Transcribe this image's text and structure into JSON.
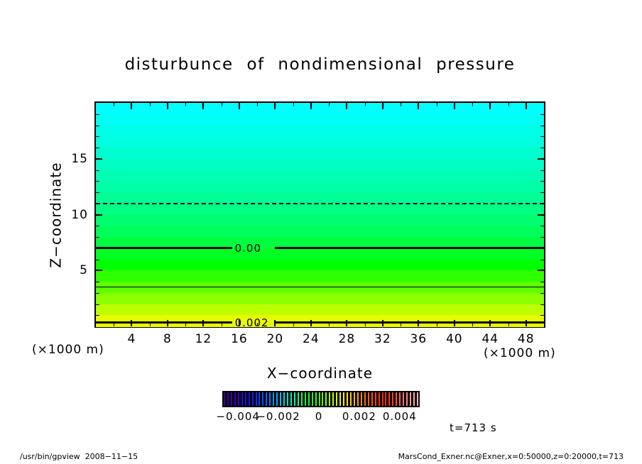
{
  "chart_data": {
    "type": "heatmap",
    "title": "disturbunce of nondimensional pressure",
    "annotation": "t=713 s",
    "x_axis": {
      "title": "X−coordinate",
      "unit_label": "(×1000 m)",
      "range": [
        0,
        50
      ],
      "tick_values": [
        4,
        8,
        12,
        16,
        20,
        24,
        28,
        32,
        36,
        40,
        44,
        48
      ],
      "tick_labels": [
        "4",
        "8",
        "12",
        "16",
        "20",
        "24",
        "28",
        "32",
        "36",
        "40",
        "44",
        "48"
      ],
      "minor_step": 2
    },
    "y_axis": {
      "title": "Z−coordinate",
      "unit_label": "(×1000 m)",
      "range": [
        0,
        20
      ],
      "tick_values": [
        5,
        10,
        15
      ],
      "tick_labels": [
        "5",
        "10",
        "15"
      ],
      "minor_step": 1
    },
    "field_description": "horizontally uniform pressure disturbance, negative (cyan) aloft decreasing to positive (yellow) near surface",
    "gradient_bands_top_to_bottom": [
      "#00FFFF",
      "#00FFF5",
      "#00FFEA",
      "#00FFDE",
      "#00FFD0",
      "#00FFC2",
      "#00FFB4",
      "#00FFA6",
      "#00FF96",
      "#00FF84",
      "#00FF70",
      "#00FF5A",
      "#00FF40",
      "#00FF22",
      "#00FF00",
      "#30FF00",
      "#5EFF00",
      "#8CFF00",
      "#BEFF00",
      "#E9FB00"
    ],
    "contour_lines": [
      {
        "z": 11.0,
        "style": "dashed",
        "label": ""
      },
      {
        "z": 7.0,
        "style": "thick",
        "label": "0.00"
      },
      {
        "z": 3.5,
        "style": "thin",
        "label": ""
      },
      {
        "z": 0.33,
        "style": "thick",
        "label": "0.002"
      }
    ],
    "colorbar": {
      "tick_labels": [
        "−0.004",
        "−0.002",
        "0",
        "0.002",
        "0.004"
      ],
      "tick_values": [
        -0.004,
        -0.002,
        0,
        0.002,
        0.004
      ],
      "stripe_count": 56,
      "palette": [
        "#3C0090",
        "#4400C8",
        "#1414E6",
        "#0048FF",
        "#0090FF",
        "#00D8E8",
        "#00FF9C",
        "#10FF3C",
        "#60FF00",
        "#C0FF00",
        "#FFF000",
        "#FFA800",
        "#FF6000",
        "#FF2800",
        "#FF3C3C",
        "#FF8484",
        "#FFB4B4"
      ]
    }
  },
  "footer": {
    "left": "/usr/bin/gpview  2008−11−15",
    "right": "MarsCond_Exner.nc@Exner,x=0:50000,z=0:20000,t=713"
  }
}
